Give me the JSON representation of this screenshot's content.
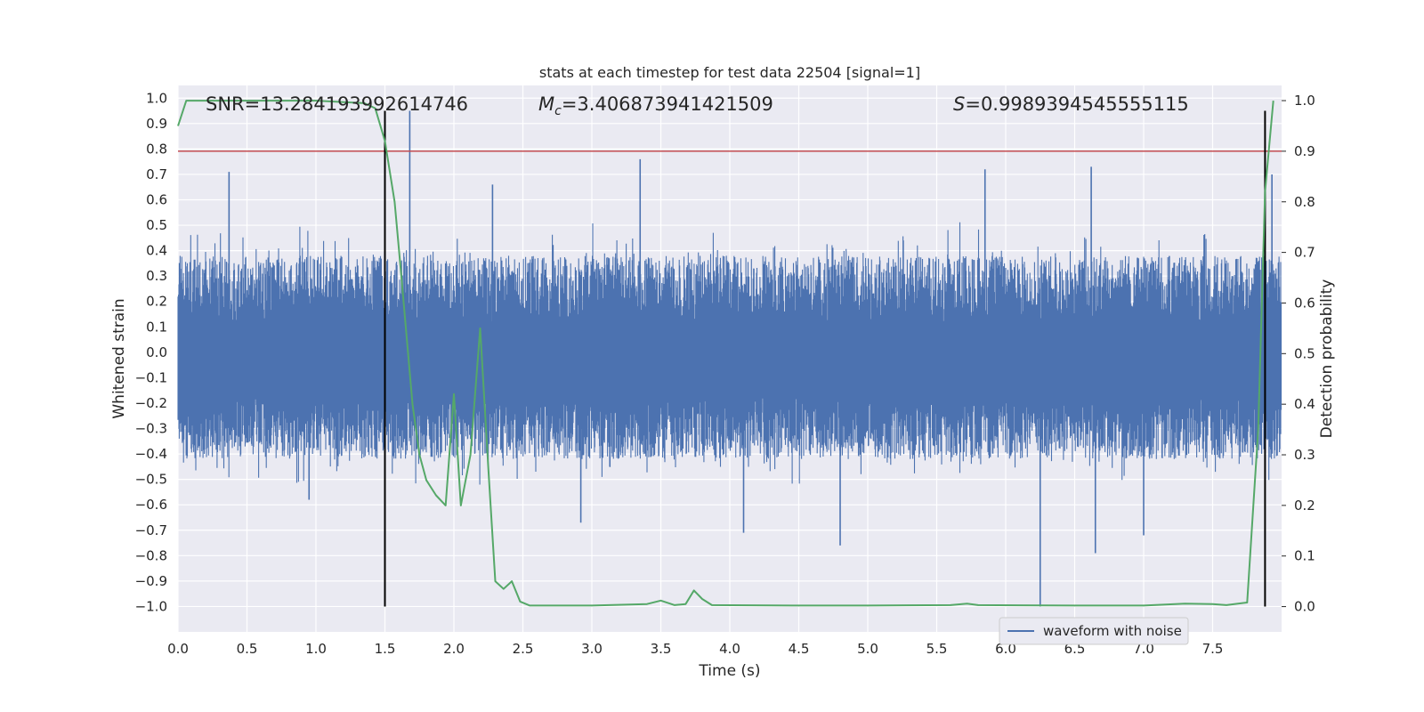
{
  "chart_data": {
    "type": "line",
    "title": "stats at each timestep for test data 22504 [signal=1]",
    "xlabel": "Time (s)",
    "ylabel_left": "Whitened strain",
    "ylabel_right": "Detection probability",
    "xlim": [
      0.0,
      8.0
    ],
    "ylim_left": [
      -1.1,
      1.05
    ],
    "ylim_right": [
      -0.05,
      1.03
    ],
    "grid": true,
    "x_ticks": [
      "0.0",
      "0.5",
      "1.0",
      "1.5",
      "2.0",
      "2.5",
      "3.0",
      "3.5",
      "4.0",
      "4.5",
      "5.0",
      "5.5",
      "6.0",
      "6.5",
      "7.0",
      "7.5"
    ],
    "y_left_ticks": [
      "1.0",
      "0.9",
      "0.8",
      "0.7",
      "0.6",
      "0.5",
      "0.4",
      "0.3",
      "0.2",
      "0.1",
      "0.0",
      "−0.1",
      "−0.2",
      "−0.3",
      "−0.4",
      "−0.5",
      "−0.6",
      "−0.7",
      "−0.8",
      "−0.9",
      "−1.0"
    ],
    "y_right_ticks": [
      "1.0",
      "0.9",
      "0.8",
      "0.7",
      "0.6",
      "0.5",
      "0.4",
      "0.3",
      "0.2",
      "0.1",
      "0.0"
    ],
    "annotations": {
      "snr": "SNR=13.284193992614746",
      "mc_symbol": "M",
      "mc_subscript": "c",
      "mc_value": "=3.406873941421509",
      "s_symbol": "S",
      "s_value": "=0.9989394545555115"
    },
    "series": [
      {
        "name": "waveform with noise",
        "axis": "left",
        "color": "#4c72b0",
        "style": "noise band, typical amplitude ±0.25 to ±0.45",
        "spikes": [
          {
            "x": 1.68,
            "y": 0.95
          },
          {
            "x": 0.37,
            "y": 0.71
          },
          {
            "x": 3.35,
            "y": 0.76
          },
          {
            "x": 6.62,
            "y": 0.73
          },
          {
            "x": 5.85,
            "y": 0.72
          },
          {
            "x": 2.28,
            "y": 0.66
          },
          {
            "x": 7.93,
            "y": 0.7
          },
          {
            "x": 6.25,
            "y": -1.0
          },
          {
            "x": 4.8,
            "y": -0.76
          },
          {
            "x": 6.65,
            "y": -0.79
          },
          {
            "x": 7.0,
            "y": -0.72
          },
          {
            "x": 4.1,
            "y": -0.71
          },
          {
            "x": 2.92,
            "y": -0.67
          },
          {
            "x": 0.95,
            "y": -0.58
          }
        ]
      },
      {
        "name": "detection probability",
        "axis": "right",
        "color": "#55a868",
        "x": [
          0.0,
          0.06,
          0.3,
          1.0,
          1.35,
          1.43,
          1.5,
          1.57,
          1.62,
          1.7,
          1.75,
          1.8,
          1.87,
          1.94,
          2.0,
          2.05,
          2.12,
          2.19,
          2.25,
          2.3,
          2.36,
          2.42,
          2.48,
          2.55,
          2.7,
          3.0,
          3.4,
          3.5,
          3.6,
          3.68,
          3.74,
          3.8,
          3.87,
          4.5,
          5.0,
          5.6,
          5.72,
          5.8,
          6.5,
          7.0,
          7.3,
          7.5,
          7.6,
          7.75,
          7.83,
          7.88,
          7.94
        ],
        "y": [
          0.95,
          1.0,
          1.0,
          1.0,
          0.995,
          0.985,
          0.92,
          0.8,
          0.65,
          0.4,
          0.3,
          0.25,
          0.22,
          0.2,
          0.42,
          0.2,
          0.3,
          0.55,
          0.27,
          0.05,
          0.035,
          0.05,
          0.01,
          0.002,
          0.002,
          0.002,
          0.005,
          0.012,
          0.003,
          0.005,
          0.032,
          0.015,
          0.003,
          0.002,
          0.002,
          0.003,
          0.006,
          0.003,
          0.002,
          0.002,
          0.006,
          0.005,
          0.003,
          0.008,
          0.35,
          0.82,
          1.0
        ]
      },
      {
        "name": "threshold",
        "axis": "right",
        "color": "#c44e52",
        "y": 0.9
      },
      {
        "name": "event markers",
        "axis": "left",
        "color": "#000000",
        "x": [
          1.5,
          7.88
        ],
        "y_range": [
          -1.0,
          0.95
        ]
      }
    ],
    "legend": {
      "placement": "lower-right",
      "entries": [
        "waveform with noise"
      ]
    }
  }
}
